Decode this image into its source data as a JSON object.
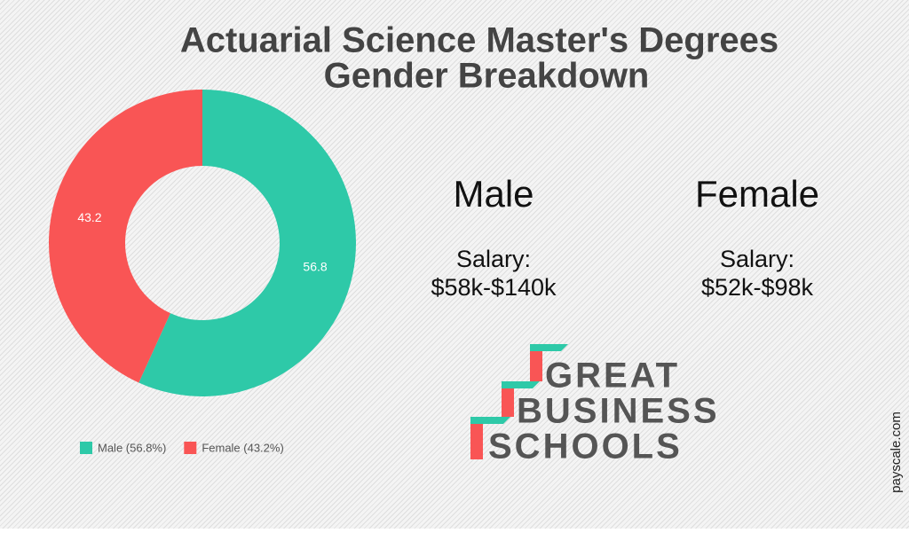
{
  "chart_data": {
    "type": "donut",
    "title_lines": [
      "Actuarial Science Master's Degrees",
      "Gender Breakdown"
    ],
    "categories": [
      "Male",
      "Female"
    ],
    "values": [
      56.8,
      43.2
    ],
    "colors": [
      "#2ec9a8",
      "#f95555"
    ],
    "legend_labels": [
      "Male (56.8%)",
      "Female (43.2%)"
    ],
    "legend_position": "bottom"
  },
  "panels": [
    {
      "heading": "Male",
      "salary_label": "Salary:",
      "salary_range": "$58k-$140k"
    },
    {
      "heading": "Female",
      "salary_label": "Salary:",
      "salary_range": "$52k-$98k"
    }
  ],
  "logo": [
    "GREAT",
    "BUSINESS",
    "SCHOOLS"
  ],
  "source": "payscale.com"
}
